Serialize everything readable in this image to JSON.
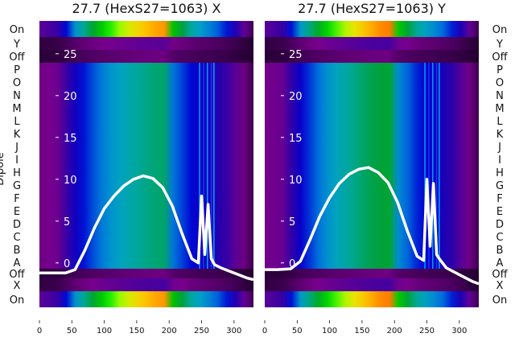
{
  "chart_data": [
    {
      "type": "heatmap",
      "title": "27.7 (HexS27=1063) X",
      "ylabel": "Dipole",
      "xlim": [
        0,
        330
      ],
      "x_ticks": [
        0,
        50,
        100,
        150,
        200,
        250,
        300
      ],
      "overlay_ylim": [
        -3,
        27
      ],
      "overlay_ticks": [
        0,
        5,
        10,
        15,
        20,
        25
      ],
      "row_labels": [
        "On",
        "Y",
        "Off",
        "P",
        "O",
        "N",
        "M",
        "L",
        "K",
        "J",
        "I",
        "H",
        "G",
        "F",
        "E",
        "D",
        "C",
        "B",
        "A",
        "Off",
        "X",
        "On"
      ],
      "colormap": "nipy_spectral",
      "bands": [
        {
          "rows": "On",
          "peak": 0.78
        },
        {
          "rows": "Y",
          "peak": 0.1
        },
        {
          "rows": "Off",
          "peak": 0.06
        },
        {
          "rows": "P–A",
          "peak": 0.42
        },
        {
          "rows": "Off",
          "peak": 0.06
        },
        {
          "rows": "X",
          "peak": 0.12
        },
        {
          "rows": "On",
          "peak": 0.78
        }
      ],
      "overlay_line": {
        "x": [
          0,
          20,
          40,
          55,
          70,
          85,
          100,
          115,
          130,
          145,
          160,
          175,
          190,
          205,
          220,
          235,
          245,
          250,
          255,
          260,
          265,
          270,
          280,
          300,
          320,
          330
        ],
        "y": [
          -1.2,
          -1.2,
          -1.2,
          -0.8,
          1.5,
          4.2,
          6.5,
          8.0,
          9.2,
          10.0,
          10.4,
          10.1,
          9.0,
          6.8,
          3.5,
          0.5,
          0.0,
          8.0,
          1.0,
          7.0,
          0.5,
          -0.2,
          -0.6,
          -1.2,
          -1.8,
          -2.0
        ]
      }
    },
    {
      "type": "heatmap",
      "title": "27.7 (HexS27=1063) Y",
      "xlim": [
        0,
        330
      ],
      "x_ticks": [
        0,
        50,
        100,
        150,
        200,
        250,
        300
      ],
      "overlay_ylim": [
        -3,
        27
      ],
      "overlay_ticks": [
        0,
        5,
        10,
        15,
        20,
        25
      ],
      "row_labels": [
        "On",
        "Y",
        "Off",
        "P",
        "O",
        "N",
        "M",
        "L",
        "K",
        "J",
        "I",
        "H",
        "G",
        "F",
        "E",
        "D",
        "C",
        "B",
        "A",
        "Off",
        "X",
        "On"
      ],
      "colormap": "nipy_spectral",
      "bands": [
        {
          "rows": "On",
          "peak": 0.8
        },
        {
          "rows": "Y",
          "peak": 0.12
        },
        {
          "rows": "Off",
          "peak": 0.06
        },
        {
          "rows": "P–A",
          "peak": 0.46
        },
        {
          "rows": "Off",
          "peak": 0.06
        },
        {
          "rows": "X",
          "peak": 0.12
        },
        {
          "rows": "On",
          "peak": 0.8
        }
      ],
      "overlay_line": {
        "x": [
          0,
          20,
          40,
          55,
          70,
          85,
          100,
          115,
          130,
          145,
          160,
          175,
          190,
          205,
          220,
          235,
          245,
          250,
          255,
          260,
          265,
          270,
          280,
          300,
          320,
          330
        ],
        "y": [
          -0.8,
          -0.8,
          -0.7,
          0.2,
          2.8,
          5.6,
          7.8,
          9.5,
          10.6,
          11.2,
          11.4,
          10.8,
          9.6,
          7.2,
          3.8,
          0.8,
          0.3,
          10.0,
          2.0,
          9.5,
          1.0,
          0.4,
          -0.6,
          -1.4,
          -2.2,
          -2.5
        ]
      }
    }
  ]
}
